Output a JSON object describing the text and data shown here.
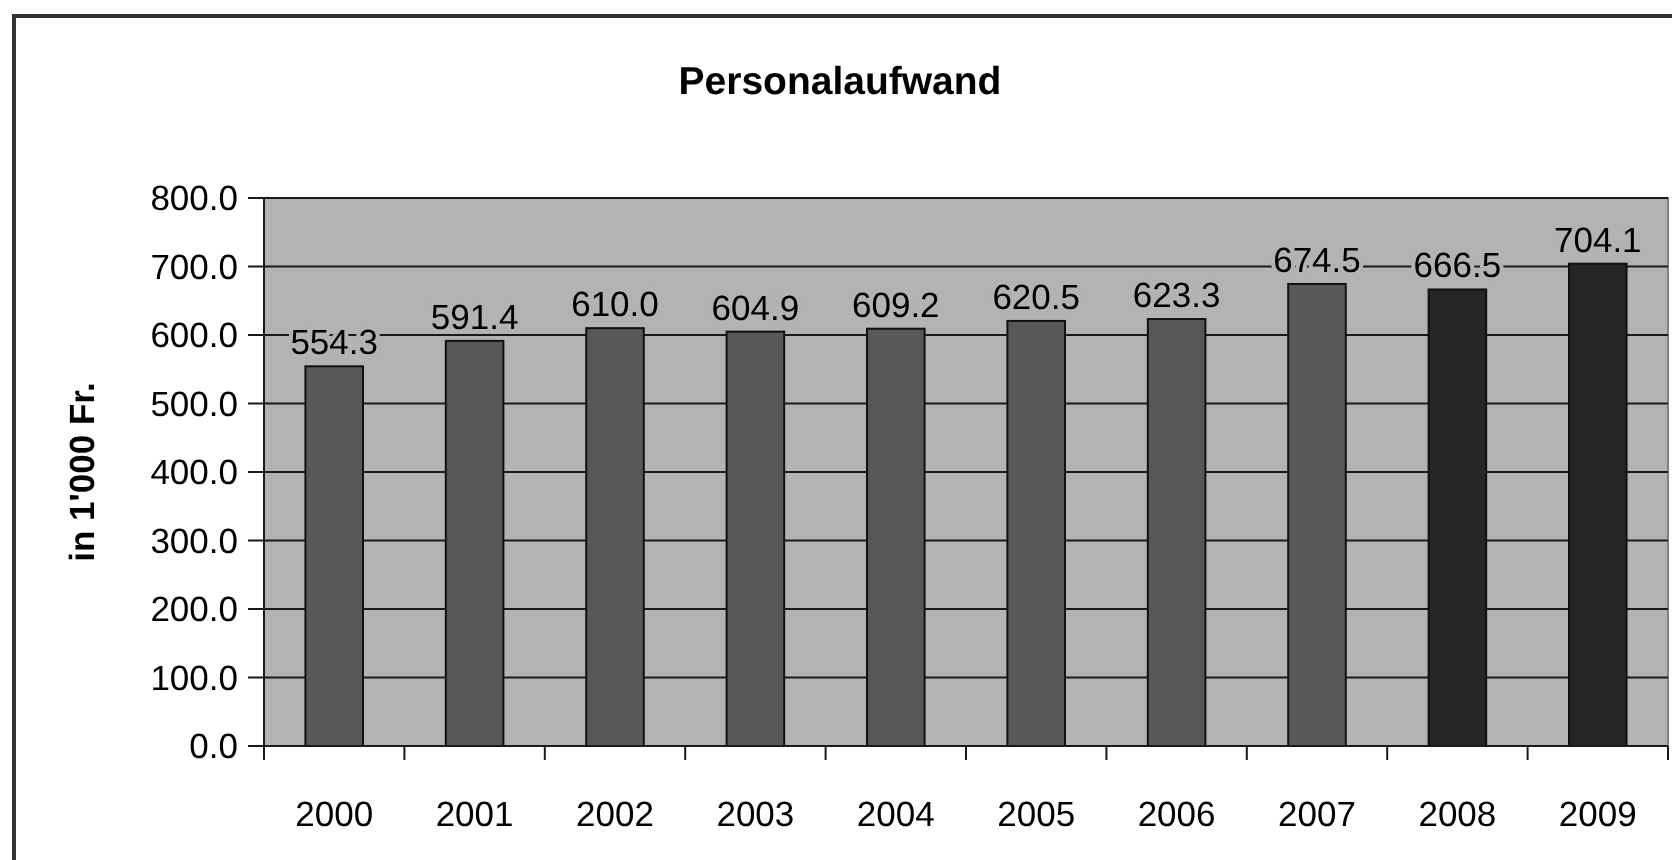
{
  "chart_data": {
    "type": "bar",
    "title": "Personalaufwand",
    "ylabel": "in 1'000 Fr.",
    "categories": [
      "2000",
      "2001",
      "2002",
      "2003",
      "2004",
      "2005",
      "2006",
      "2007",
      "2008",
      "2009"
    ],
    "values": [
      554.3,
      591.4,
      610.0,
      604.9,
      609.2,
      620.5,
      623.3,
      674.5,
      666.5,
      704.1
    ],
    "colors": [
      "#585858",
      "#585858",
      "#585858",
      "#585858",
      "#585858",
      "#585858",
      "#585858",
      "#585858",
      "#252525",
      "#252525"
    ],
    "value_labels": [
      "554.3",
      "591.4",
      "610.0",
      "604.9",
      "609.2",
      "620.5",
      "623.3",
      "674.5",
      "666.5",
      "704.1"
    ],
    "ylim": [
      0,
      800
    ],
    "yticks": [
      {
        "value": 0,
        "label": "0.0"
      },
      {
        "value": 100,
        "label": "100.0"
      },
      {
        "value": 200,
        "label": "200.0"
      },
      {
        "value": 300,
        "label": "300.0"
      },
      {
        "value": 400,
        "label": "400.0"
      },
      {
        "value": 500,
        "label": "500.0"
      },
      {
        "value": 600,
        "label": "600.0"
      },
      {
        "value": 700,
        "label": "700.0"
      },
      {
        "value": 800,
        "label": "800.0"
      }
    ],
    "grid": "y"
  }
}
